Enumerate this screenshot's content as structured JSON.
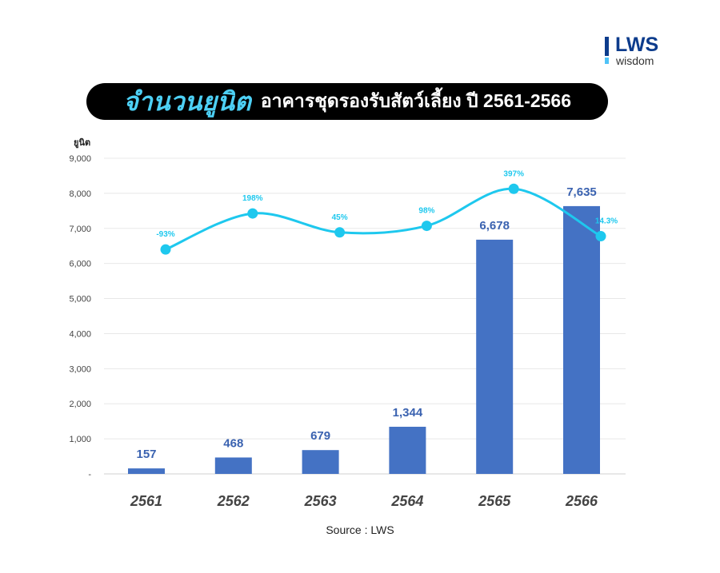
{
  "logo": {
    "main": "LWS",
    "sub": "wisdom"
  },
  "title": {
    "highlight": "จำนวนยูนิต",
    "rest": "อาคารชุดรองรับสัตว์เลี้ยง ปี 2561-2566"
  },
  "source": "Source : LWS",
  "colors": {
    "bar": "#4472c4",
    "line": "#1ec8ee",
    "bar_label": "#3a62b0",
    "line_label": "#1ec8ee"
  },
  "chart_data": {
    "type": "bar+line",
    "ylabel": "ยูนิต",
    "ylim": [
      0,
      9000
    ],
    "yticks": [
      0,
      1000,
      2000,
      3000,
      4000,
      5000,
      6000,
      7000,
      8000,
      9000
    ],
    "ytick_labels": [
      "-",
      "1,000",
      "2,000",
      "3,000",
      "4,000",
      "5,000",
      "6,000",
      "7,000",
      "8,000",
      "9,000"
    ],
    "grid": true,
    "categories": [
      "2561",
      "2562",
      "2563",
      "2564",
      "2565",
      "2566"
    ],
    "series": [
      {
        "type": "bar",
        "values": [
          157,
          468,
          679,
          1344,
          6678,
          7635
        ],
        "labels": [
          "157",
          "468",
          "679",
          "1,344",
          "6,678",
          "7,635"
        ]
      },
      {
        "type": "line",
        "axis": "secondary-hidden",
        "smooth": true,
        "values": [
          -93,
          198,
          45,
          98,
          397,
          14.3
        ],
        "labels": [
          "-93%",
          "198%",
          "45%",
          "98%",
          "397%",
          "14.3%"
        ],
        "y2lim": [
          -1906,
          644
        ]
      }
    ]
  }
}
